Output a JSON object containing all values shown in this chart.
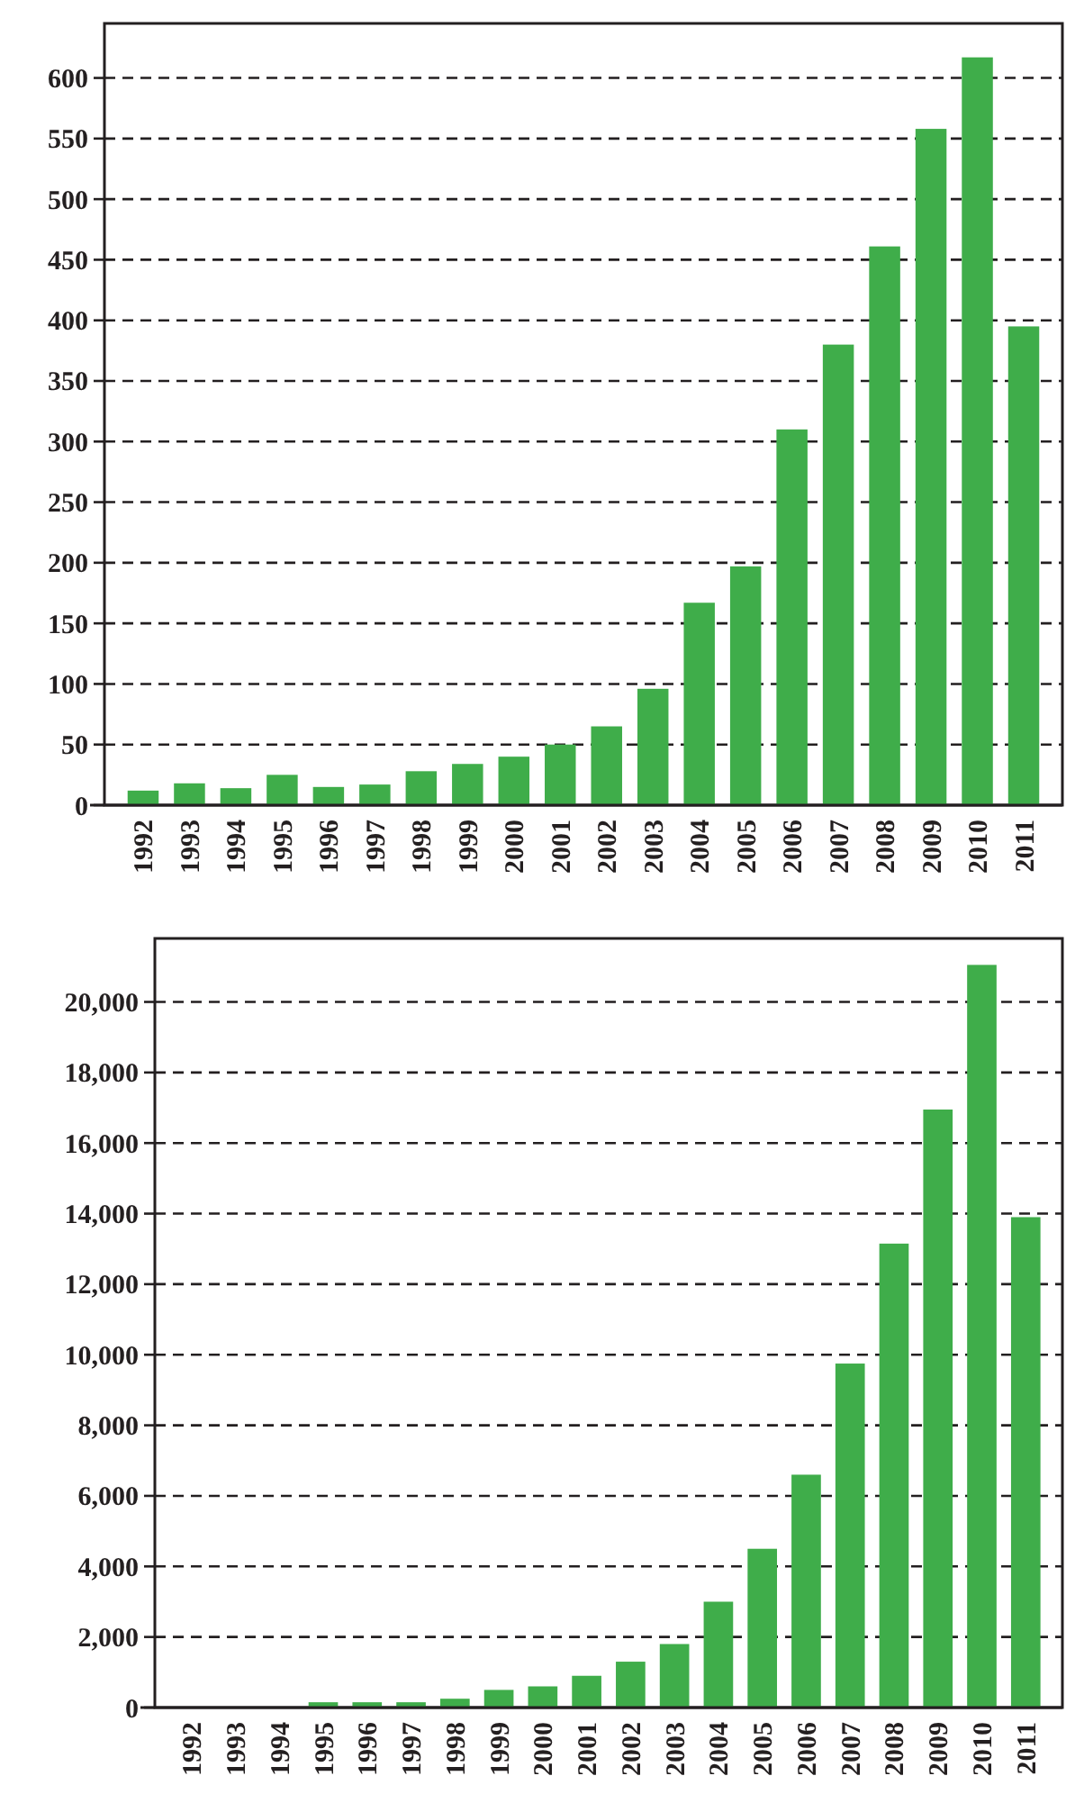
{
  "chart_data": [
    {
      "type": "bar",
      "categories": [
        "1992",
        "1993",
        "1994",
        "1995",
        "1996",
        "1997",
        "1998",
        "1999",
        "2000",
        "2001",
        "2002",
        "2003",
        "2004",
        "2005",
        "2006",
        "2007",
        "2008",
        "2009",
        "2010",
        "2011"
      ],
      "color": "#3fad4a",
      "values": [
        12,
        18,
        14,
        25,
        15,
        17,
        28,
        34,
        40,
        50,
        65,
        96,
        167,
        197,
        310,
        380,
        461,
        558,
        617,
        395
      ],
      "ylim": [
        0,
        645
      ],
      "yticks": [
        0,
        50,
        100,
        150,
        200,
        250,
        300,
        350,
        400,
        450,
        500,
        550,
        600
      ],
      "grid": "y",
      "line_style": "dashed"
    },
    {
      "type": "bar",
      "categories": [
        "1992",
        "1993",
        "1994",
        "1995",
        "1996",
        "1997",
        "1998",
        "1999",
        "2000",
        "2001",
        "2002",
        "2003",
        "2004",
        "2005",
        "2006",
        "2007",
        "2008",
        "2009",
        "2010",
        "2011"
      ],
      "color": "#3fad4a",
      "values": [
        10,
        10,
        10,
        150,
        150,
        150,
        250,
        500,
        600,
        900,
        1300,
        1800,
        3000,
        4500,
        6600,
        9750,
        13150,
        16950,
        21050,
        13900
      ],
      "ylim": [
        0,
        21800
      ],
      "yticks": [
        0,
        {
          "value": 2000,
          "label": "2,000"
        },
        {
          "value": 4000,
          "label": "4,000"
        },
        {
          "value": 6000,
          "label": "6,000"
        },
        {
          "value": 8000,
          "label": "8,000"
        },
        {
          "value": 10000,
          "label": "10,000"
        },
        {
          "value": 12000,
          "label": "12,000"
        },
        {
          "value": 14000,
          "label": "14,000"
        },
        {
          "value": 16000,
          "label": "16,000"
        },
        {
          "value": 18000,
          "label": "18,000"
        },
        {
          "value": 20000,
          "label": "20,000"
        }
      ],
      "grid": "y",
      "line_style": "dashed"
    }
  ]
}
